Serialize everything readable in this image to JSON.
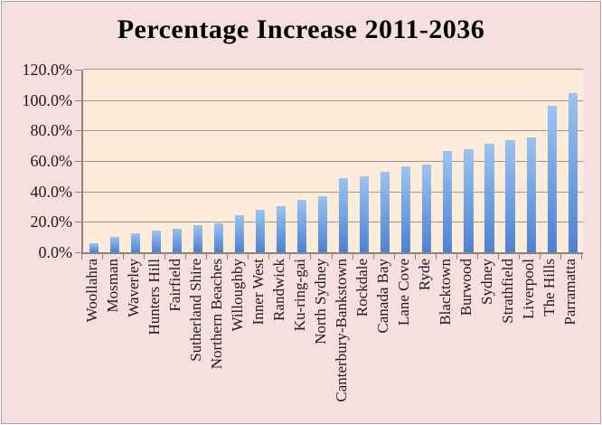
{
  "chart_data": {
    "type": "bar",
    "title": "Percentage Increase 2011-2036",
    "categories": [
      "Woollahra",
      "Mosman",
      "Waverley",
      "Hunters Hill",
      "Fairfield",
      "Sutherland Shire",
      "Northern Beaches",
      "Willoughby",
      "Inner West",
      "Randwick",
      "Ku-ring-gai",
      "North Sydney",
      "Canterbury-Bankstown",
      "Rockdale",
      "Canada Bay",
      "Lane Cove",
      "Ryde",
      "Blacktown",
      "Burwood",
      "Sydney",
      "Strathfield",
      "Liverpool",
      "The Hills",
      "Parramatta"
    ],
    "values": [
      6,
      10,
      12.5,
      14,
      15.5,
      18,
      19,
      24.5,
      28,
      30.5,
      34.5,
      37,
      49,
      50,
      53,
      56.5,
      57.5,
      66.5,
      68,
      71.5,
      73.5,
      75.5,
      96,
      104.5
    ],
    "xlabel": "",
    "ylabel": "",
    "ylim": [
      0,
      120
    ],
    "ytick_step": 20,
    "ytick_labels": [
      "0.0%",
      "20.0%",
      "40.0%",
      "60.0%",
      "80.0%",
      "100.0%",
      "120.0%"
    ],
    "grid": true,
    "legend_position": "none",
    "colors": {
      "background": "#f5e0df",
      "plot_background": "#fcecd9",
      "bar_gradient_top": "#9cc3f0",
      "bar_gradient_bottom": "#4b82d2",
      "gridline": "#a0968f",
      "axis": "#8c837d",
      "text": "#1f1a17",
      "title": "#000000",
      "frame": "#a8a8a8"
    }
  }
}
